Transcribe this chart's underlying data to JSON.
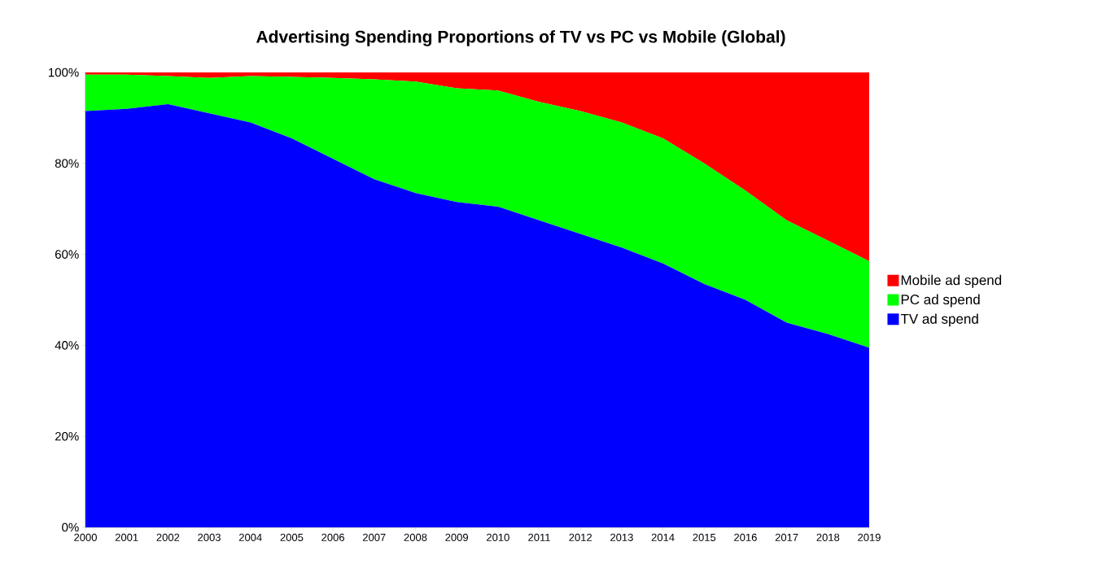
{
  "chart_data": {
    "type": "area",
    "title": "Advertising Spending Proportions of TV vs PC vs Mobile (Global)",
    "stacked": true,
    "x": [
      2000,
      2001,
      2002,
      2003,
      2004,
      2005,
      2006,
      2007,
      2008,
      2009,
      2010,
      2011,
      2012,
      2013,
      2014,
      2015,
      2016,
      2017,
      2018,
      2019
    ],
    "series": [
      {
        "name": "TV ad spend",
        "color": "#0000ff",
        "values": [
          91.5,
          92,
          93,
          91,
          89,
          85.5,
          81,
          76.5,
          73.5,
          71.5,
          70.5,
          67.5,
          64.5,
          61.5,
          58,
          53.5,
          50,
          45,
          42.5,
          39.5
        ]
      },
      {
        "name": "PC ad spend",
        "color": "#00ff00",
        "values": [
          8,
          7.5,
          6.2,
          7.8,
          10.2,
          13.5,
          17.8,
          22,
          24.5,
          25,
          25.5,
          26,
          27,
          27.5,
          27.5,
          26.5,
          24,
          22.5,
          20.5,
          19
        ]
      },
      {
        "name": "Mobile ad spend",
        "color": "#ff0000",
        "values": [
          0.5,
          0.5,
          0.8,
          1.2,
          0.8,
          1,
          1.2,
          1.5,
          2,
          3.5,
          4,
          6.5,
          8.5,
          11,
          14.5,
          20,
          26,
          32.5,
          37,
          41.5
        ]
      }
    ],
    "xlim": [
      2000,
      2019
    ],
    "ylim": [
      0,
      100
    ],
    "xticks": [
      2000,
      2001,
      2002,
      2003,
      2004,
      2005,
      2006,
      2007,
      2008,
      2009,
      2010,
      2011,
      2012,
      2013,
      2014,
      2015,
      2016,
      2017,
      2018,
      2019
    ],
    "yticks": [
      {
        "value": 0,
        "label": "0%"
      },
      {
        "value": 20,
        "label": "20%"
      },
      {
        "value": 40,
        "label": "40%"
      },
      {
        "value": 60,
        "label": "60%"
      },
      {
        "value": 80,
        "label": "80%"
      },
      {
        "value": 100,
        "label": "100%"
      }
    ],
    "legend": "right",
    "grid": false
  }
}
